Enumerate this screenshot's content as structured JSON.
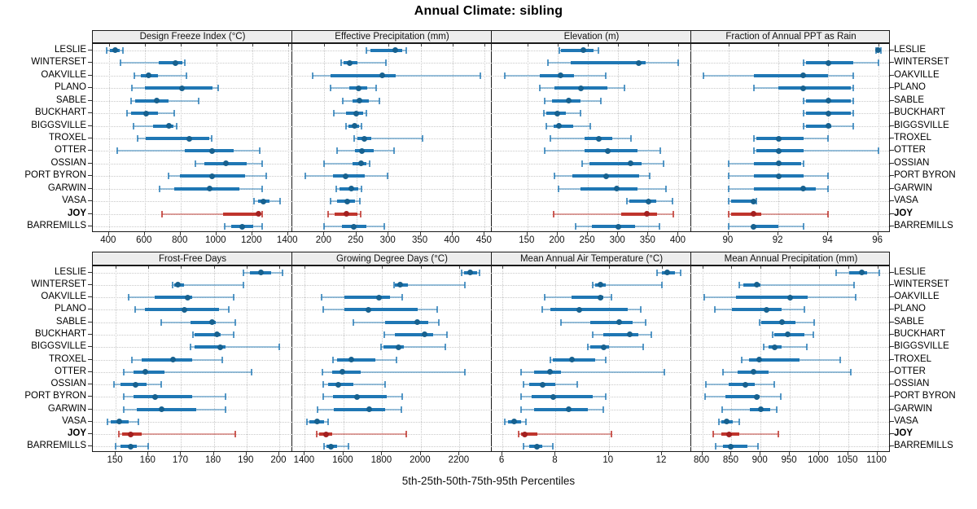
{
  "title": "Annual Climate: sibling",
  "caption": "5th-25th-50th-75th-95th Percentiles",
  "highlight_site": "JOY",
  "sites": [
    "LESLIE",
    "WINTERSET",
    "OAKVILLE",
    "PLANO",
    "SABLE",
    "BUCKHART",
    "BIGGSVILLE",
    "TROXEL",
    "OTTER",
    "OSSIAN",
    "PORT BYRON",
    "GARWIN",
    "VASA",
    "JOY",
    "BARREMILLS"
  ],
  "colors": {
    "blue_main": "#1f77b4",
    "blue_thin": "rgba(31,119,180,0.45)",
    "blue_cap": "rgba(31,119,180,0.75)",
    "blue_dot": "#17618f",
    "red_main": "#bf352d",
    "red_thin": "rgba(191,53,45,0.45)",
    "red_cap": "rgba(191,53,45,0.8)",
    "red_dot": "#a32020",
    "grid": "#c9c9c9",
    "header_bg": "#ededed",
    "border": "#1a1a1a"
  },
  "chart_data": [
    {
      "type": "dotplot-percentile-ranges",
      "title": "Design Freeze Index (°C)",
      "xlim": [
        310,
        1424
      ],
      "ticks": [
        400,
        600,
        800,
        1000,
        1200,
        1400
      ],
      "percentiles": [
        "5th",
        "25th",
        "50th",
        "75th",
        "95th"
      ],
      "values": [
        [
          388,
          405,
          436,
          458,
          480
        ],
        [
          465,
          680,
          770,
          810,
          822
        ],
        [
          540,
          578,
          621,
          675,
          833
        ],
        [
          530,
          600,
          810,
          980,
          1008
        ],
        [
          524,
          545,
          666,
          735,
          900
        ],
        [
          500,
          524,
          606,
          674,
          765
        ],
        [
          539,
          645,
          735,
          762,
          780
        ],
        [
          560,
          606,
          848,
          960,
          976
        ],
        [
          446,
          825,
          976,
          1098,
          1240
        ],
        [
          885,
          931,
          1052,
          1168,
          1257
        ],
        [
          735,
          795,
          976,
          1159,
          1280
        ],
        [
          681,
          765,
          961,
          1129,
          1256
        ],
        [
          1211,
          1235,
          1264,
          1295,
          1355
        ],
        [
          696,
          1037,
          1234,
          1249,
          1258
        ],
        [
          1045,
          1084,
          1144,
          1205,
          1255
        ]
      ]
    },
    {
      "type": "dotplot-percentile-ranges",
      "title": "Effective Precipitation (mm)",
      "xlim": [
        150,
        461
      ],
      "ticks": [
        200,
        250,
        300,
        350,
        400,
        450
      ],
      "percentiles": [
        "5th",
        "25th",
        "50th",
        "75th",
        "95th"
      ],
      "values": [
        [
          266,
          272,
          310,
          322,
          328
        ],
        [
          226,
          230,
          240,
          252,
          296
        ],
        [
          182,
          210,
          290,
          311,
          443
        ],
        [
          210,
          239,
          254,
          267,
          281
        ],
        [
          229,
          244,
          255,
          269,
          286
        ],
        [
          215,
          234,
          250,
          261,
          265
        ],
        [
          234,
          238,
          247,
          254,
          258
        ],
        [
          247,
          251,
          262,
          273,
          353
        ],
        [
          220,
          248,
          258,
          277,
          309
        ],
        [
          199,
          244,
          257,
          266,
          270
        ],
        [
          170,
          214,
          233,
          263,
          299
        ],
        [
          219,
          224,
          242,
          253,
          258
        ],
        [
          210,
          220,
          236,
          248,
          255
        ],
        [
          206,
          216,
          234,
          252,
          257
        ],
        [
          199,
          227,
          246,
          265,
          294
        ]
      ]
    },
    {
      "type": "dotplot-percentile-ranges",
      "title": "Elevation (m)",
      "xlim": [
        91,
        421
      ],
      "ticks": [
        150,
        200,
        250,
        300,
        350,
        400
      ],
      "percentiles": [
        "5th",
        "25th",
        "50th",
        "75th",
        "95th"
      ],
      "values": [
        [
          203,
          206,
          242,
          260,
          267
        ],
        [
          184,
          222,
          334,
          346,
          399
        ],
        [
          112,
          170,
          205,
          227,
          280
        ],
        [
          170,
          195,
          239,
          282,
          311
        ],
        [
          179,
          190,
          218,
          238,
          272
        ],
        [
          177,
          181,
          199,
          214,
          238
        ],
        [
          181,
          194,
          202,
          226,
          254
        ],
        [
          188,
          245,
          268,
          290,
          321
        ],
        [
          179,
          244,
          283,
          332,
          370
        ],
        [
          240,
          253,
          321,
          339,
          375
        ],
        [
          195,
          225,
          280,
          335,
          352
        ],
        [
          202,
          238,
          298,
          332,
          379
        ],
        [
          314,
          319,
          350,
          363,
          390
        ],
        [
          194,
          305,
          347,
          364,
          392
        ],
        [
          230,
          256,
          300,
          328,
          368
        ]
      ]
    },
    {
      "type": "dotplot-percentile-ranges",
      "title": "Fraction of Annual PPT as Rain",
      "xlim": [
        88.5,
        96.5
      ],
      "ticks": [
        90,
        92,
        94,
        96
      ],
      "percentiles": [
        "5th",
        "25th",
        "50th",
        "75th",
        "95th"
      ],
      "values": [
        [
          95.9,
          95.95,
          96,
          96.05,
          96.1
        ],
        [
          93,
          93.1,
          94,
          95,
          96
        ],
        [
          89,
          91,
          93,
          94,
          95
        ],
        [
          91,
          92,
          93,
          94.9,
          95
        ],
        [
          93,
          93.1,
          94,
          94.9,
          95
        ],
        [
          93,
          93.1,
          94,
          94.9,
          95
        ],
        [
          93,
          93.1,
          94,
          94.1,
          95
        ],
        [
          91,
          91.1,
          92,
          93,
          94
        ],
        [
          91,
          91.1,
          92,
          93,
          96
        ],
        [
          90,
          91,
          92,
          92.9,
          93
        ],
        [
          90,
          91,
          92,
          93,
          94
        ],
        [
          90,
          91,
          93,
          93.5,
          94
        ],
        [
          90,
          90.1,
          91,
          91.02,
          91.1
        ],
        [
          90,
          90.1,
          91,
          91.3,
          94
        ],
        [
          90,
          91,
          91,
          92,
          93
        ]
      ]
    },
    {
      "type": "dotplot-percentile-ranges",
      "title": "Frost-Free Days",
      "xlim": [
        143,
        204
      ],
      "ticks": [
        150,
        160,
        170,
        180,
        190,
        200
      ],
      "percentiles": [
        "5th",
        "25th",
        "50th",
        "75th",
        "95th"
      ],
      "values": [
        [
          189,
          191,
          194.5,
          197.5,
          201
        ],
        [
          167.5,
          168,
          169,
          171,
          189
        ],
        [
          154,
          162,
          172,
          173.5,
          186
        ],
        [
          156,
          159,
          171,
          181.5,
          184.5
        ],
        [
          164,
          173,
          179.5,
          180.5,
          186.5
        ],
        [
          173.5,
          174,
          181,
          182,
          186
        ],
        [
          173,
          174,
          182,
          183.5,
          200
        ],
        [
          155,
          158,
          167.5,
          173.5,
          182.5
        ],
        [
          152.5,
          155.5,
          159,
          165,
          191.5
        ],
        [
          149.5,
          151.5,
          156,
          159.5,
          164
        ],
        [
          152.5,
          155.5,
          162,
          173.5,
          183.5
        ],
        [
          152.5,
          156.5,
          164,
          174.5,
          183.5
        ],
        [
          147.5,
          148.5,
          151,
          154,
          157
        ],
        [
          151,
          152,
          154.5,
          158,
          186.5
        ],
        [
          150,
          151.5,
          154.5,
          156.5,
          160
        ]
      ]
    },
    {
      "type": "dotplot-percentile-ranges",
      "title": "Growing Degree Days (°C)",
      "xlim": [
        1335,
        2367
      ],
      "ticks": [
        1400,
        1600,
        1800,
        2000,
        2200
      ],
      "percentiles": [
        "5th",
        "25th",
        "50th",
        "75th",
        "95th"
      ],
      "values": [
        [
          2210,
          2225,
          2255,
          2290,
          2305
        ],
        [
          1860,
          1865,
          1895,
          1935,
          2230
        ],
        [
          1485,
          1605,
          1785,
          1840,
          1905
        ],
        [
          1495,
          1605,
          1730,
          1985,
          2085
        ],
        [
          1650,
          1815,
          1980,
          2040,
          2095
        ],
        [
          1810,
          1865,
          2020,
          2065,
          2135
        ],
        [
          1795,
          1805,
          1885,
          1910,
          2125
        ],
        [
          1545,
          1565,
          1640,
          1765,
          1875
        ],
        [
          1490,
          1540,
          1595,
          1690,
          2230
        ],
        [
          1495,
          1520,
          1575,
          1650,
          1815
        ],
        [
          1495,
          1545,
          1670,
          1825,
          1905
        ],
        [
          1465,
          1550,
          1735,
          1815,
          1900
        ],
        [
          1410,
          1425,
          1465,
          1500,
          1520
        ],
        [
          1460,
          1475,
          1510,
          1540,
          1925
        ],
        [
          1500,
          1510,
          1535,
          1565,
          1625
        ]
      ]
    },
    {
      "type": "dotplot-percentile-ranges",
      "title": "Mean Annual Air Temperature (°C)",
      "xlim": [
        5.6,
        13.1
      ],
      "ticks": [
        6,
        8,
        10,
        12
      ],
      "percentiles": [
        "5th",
        "25th",
        "50th",
        "75th",
        "95th"
      ],
      "values": [
        [
          11.8,
          12.0,
          12.2,
          12.5,
          12.7
        ],
        [
          9.4,
          9.5,
          9.7,
          9.9,
          12.0
        ],
        [
          7.6,
          8.6,
          9.7,
          9.8,
          10.1
        ],
        [
          7.5,
          7.8,
          8.9,
          10.7,
          11.2
        ],
        [
          8.2,
          9.3,
          10.4,
          10.9,
          11.4
        ],
        [
          9.4,
          9.8,
          10.8,
          11.1,
          11.6
        ],
        [
          9.2,
          9.3,
          9.8,
          10.0,
          11.3
        ],
        [
          7.8,
          7.9,
          8.6,
          9.5,
          9.9
        ],
        [
          6.7,
          7.2,
          7.8,
          8.2,
          12.1
        ],
        [
          6.8,
          7.0,
          7.5,
          8.0,
          8.8
        ],
        [
          6.7,
          7.1,
          7.9,
          9.4,
          9.9
        ],
        [
          6.7,
          7.2,
          8.5,
          9.2,
          9.8
        ],
        [
          6.1,
          6.2,
          6.45,
          6.7,
          6.9
        ],
        [
          6.6,
          6.7,
          6.85,
          7.3,
          10.1
        ],
        [
          6.8,
          7.0,
          7.3,
          7.5,
          7.9
        ]
      ]
    },
    {
      "type": "dotplot-percentile-ranges",
      "title": "Mean Annual Precipitation (mm)",
      "xlim": [
        781,
        1123
      ],
      "ticks": [
        800,
        850,
        900,
        950,
        1000,
        1050,
        1100
      ],
      "percentiles": [
        "5th",
        "25th",
        "50th",
        "75th",
        "95th"
      ],
      "values": [
        [
          1029,
          1052,
          1073,
          1082,
          1103
        ],
        [
          863,
          871,
          893,
          900,
          1060
        ],
        [
          804,
          858,
          950,
          981,
          1063
        ],
        [
          821,
          851,
          910,
          936,
          975
        ],
        [
          898,
          901,
          936,
          959,
          992
        ],
        [
          920,
          923,
          947,
          975,
          990
        ],
        [
          905,
          913,
          924,
          936,
          979
        ],
        [
          868,
          880,
          898,
          967,
          1037
        ],
        [
          835,
          860,
          888,
          914,
          1054
        ],
        [
          806,
          845,
          874,
          890,
          923
        ],
        [
          805,
          840,
          894,
          898,
          935
        ],
        [
          834,
          882,
          901,
          917,
          928
        ],
        [
          828,
          832,
          842,
          852,
          863
        ],
        [
          818,
          832,
          846,
          863,
          931
        ],
        [
          823,
          835,
          849,
          877,
          896
        ]
      ]
    }
  ]
}
